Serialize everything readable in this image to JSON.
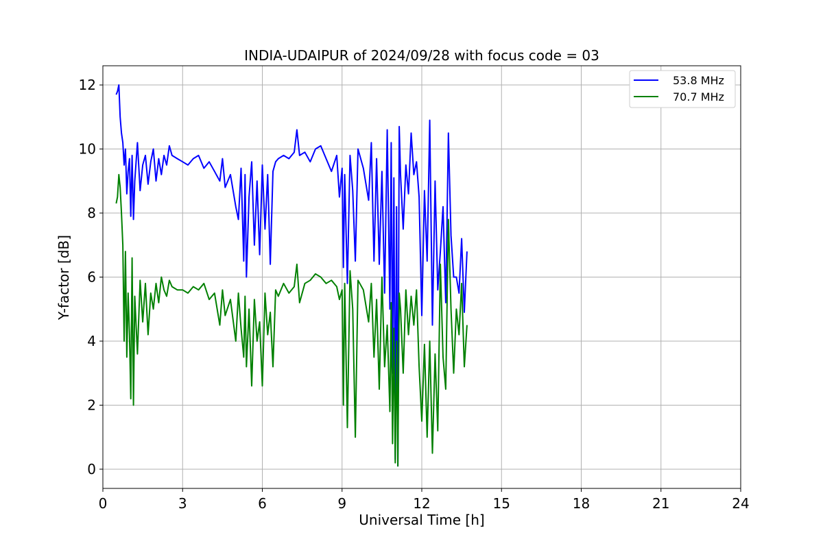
{
  "chart_data": {
    "type": "line",
    "title": "INDIA-UDAIPUR of 2024/09/28 with focus code = 03",
    "xlabel": "Universal Time [h]",
    "ylabel": "Y-factor [dB]",
    "xlim": [
      0,
      24
    ],
    "ylim": [
      -0.6,
      12.6
    ],
    "xticks": [
      "0",
      "3",
      "6",
      "9",
      "12",
      "15",
      "18",
      "21",
      "24"
    ],
    "xtick_values": [
      0,
      3,
      6,
      9,
      12,
      15,
      18,
      21,
      24
    ],
    "yticks": [
      "0",
      "2",
      "4",
      "6",
      "8",
      "10",
      "12"
    ],
    "ytick_values": [
      0,
      2,
      4,
      6,
      8,
      10,
      12
    ],
    "grid": true,
    "legend_position": "top-right",
    "series": [
      {
        "name": "53.8 MHz",
        "color": "#0000ff",
        "x": [
          0.5,
          0.55,
          0.6,
          0.65,
          0.7,
          0.75,
          0.8,
          0.85,
          0.9,
          0.95,
          1.0,
          1.05,
          1.1,
          1.15,
          1.2,
          1.3,
          1.4,
          1.5,
          1.6,
          1.7,
          1.8,
          1.9,
          2.0,
          2.1,
          2.2,
          2.3,
          2.4,
          2.5,
          2.6,
          2.8,
          3.0,
          3.2,
          3.4,
          3.6,
          3.8,
          4.0,
          4.2,
          4.4,
          4.5,
          4.6,
          4.8,
          5.0,
          5.1,
          5.2,
          5.3,
          5.35,
          5.4,
          5.5,
          5.6,
          5.7,
          5.8,
          5.9,
          6.0,
          6.1,
          6.2,
          6.3,
          6.4,
          6.5,
          6.6,
          6.8,
          7.0,
          7.2,
          7.3,
          7.4,
          7.6,
          7.8,
          8.0,
          8.2,
          8.4,
          8.6,
          8.8,
          8.9,
          9.0,
          9.05,
          9.1,
          9.2,
          9.3,
          9.4,
          9.5,
          9.6,
          9.8,
          10.0,
          10.1,
          10.2,
          10.3,
          10.4,
          10.5,
          10.6,
          10.7,
          10.8,
          10.85,
          10.9,
          10.95,
          11.0,
          11.05,
          11.1,
          11.15,
          11.2,
          11.3,
          11.4,
          11.5,
          11.6,
          11.7,
          11.8,
          11.9,
          12.0,
          12.1,
          12.2,
          12.3,
          12.4,
          12.5,
          12.6,
          12.7,
          12.8,
          12.9,
          13.0,
          13.1,
          13.2,
          13.3,
          13.4,
          13.5,
          13.6,
          13.7
        ],
        "y": [
          11.7,
          11.8,
          12.0,
          11.0,
          10.5,
          10.2,
          9.5,
          10.0,
          8.6,
          9.3,
          9.7,
          7.9,
          9.8,
          7.8,
          9.0,
          10.2,
          8.7,
          9.5,
          9.8,
          8.9,
          9.6,
          10.0,
          9.0,
          9.7,
          9.2,
          9.8,
          9.5,
          10.1,
          9.8,
          9.7,
          9.6,
          9.5,
          9.7,
          9.8,
          9.4,
          9.6,
          9.3,
          9.0,
          9.7,
          8.8,
          9.2,
          8.2,
          7.8,
          9.4,
          6.5,
          9.2,
          6.0,
          8.5,
          9.6,
          7.0,
          9.0,
          6.7,
          9.5,
          7.5,
          9.2,
          6.4,
          9.3,
          9.6,
          9.7,
          9.8,
          9.7,
          9.9,
          10.6,
          9.8,
          9.9,
          9.6,
          10.0,
          10.1,
          9.7,
          9.3,
          9.8,
          8.5,
          9.4,
          6.3,
          9.2,
          5.8,
          9.8,
          8.7,
          6.5,
          10.0,
          9.4,
          8.4,
          10.2,
          6.5,
          9.7,
          6.4,
          9.3,
          5.5,
          10.6,
          5.0,
          10.2,
          3.0,
          9.1,
          0.3,
          8.2,
          0.1,
          10.7,
          9.2,
          7.5,
          9.5,
          8.6,
          10.5,
          9.2,
          9.6,
          8.5,
          4.8,
          8.7,
          6.5,
          10.9,
          4.5,
          9.0,
          5.6,
          6.8,
          8.2,
          5.2,
          10.5,
          7.3,
          6.0,
          6.0,
          5.5,
          7.2,
          4.9,
          6.8
        ],
        "legend_label": "53.8 MHz"
      },
      {
        "name": "70.7 MHz",
        "color": "#008000",
        "x": [
          0.5,
          0.55,
          0.6,
          0.65,
          0.7,
          0.75,
          0.8,
          0.85,
          0.9,
          0.95,
          1.0,
          1.05,
          1.1,
          1.15,
          1.2,
          1.3,
          1.4,
          1.5,
          1.6,
          1.7,
          1.8,
          1.9,
          2.0,
          2.1,
          2.2,
          2.3,
          2.4,
          2.5,
          2.6,
          2.8,
          3.0,
          3.2,
          3.4,
          3.6,
          3.8,
          4.0,
          4.2,
          4.4,
          4.5,
          4.6,
          4.8,
          5.0,
          5.1,
          5.2,
          5.3,
          5.35,
          5.4,
          5.5,
          5.6,
          5.7,
          5.8,
          5.9,
          6.0,
          6.1,
          6.2,
          6.3,
          6.4,
          6.5,
          6.6,
          6.8,
          7.0,
          7.2,
          7.3,
          7.4,
          7.6,
          7.8,
          8.0,
          8.2,
          8.4,
          8.6,
          8.8,
          8.9,
          9.0,
          9.05,
          9.1,
          9.2,
          9.3,
          9.4,
          9.5,
          9.6,
          9.8,
          10.0,
          10.1,
          10.2,
          10.3,
          10.4,
          10.5,
          10.6,
          10.7,
          10.8,
          10.85,
          10.9,
          10.95,
          11.0,
          11.05,
          11.1,
          11.15,
          11.2,
          11.3,
          11.4,
          11.5,
          11.6,
          11.7,
          11.8,
          11.9,
          12.0,
          12.1,
          12.2,
          12.3,
          12.4,
          12.5,
          12.6,
          12.7,
          12.8,
          12.9,
          13.0,
          13.1,
          13.2,
          13.3,
          13.4,
          13.5,
          13.6,
          13.7
        ],
        "y": [
          8.3,
          8.5,
          9.2,
          8.8,
          8.0,
          7.0,
          4.0,
          6.8,
          3.5,
          5.5,
          4.2,
          2.2,
          6.6,
          2.0,
          5.4,
          3.6,
          5.9,
          4.6,
          5.8,
          4.2,
          5.5,
          5.0,
          5.8,
          5.2,
          6.0,
          5.6,
          5.4,
          5.9,
          5.7,
          5.6,
          5.6,
          5.5,
          5.7,
          5.6,
          5.8,
          5.3,
          5.5,
          4.5,
          5.6,
          4.8,
          5.3,
          4.0,
          5.5,
          4.4,
          3.5,
          5.4,
          3.2,
          5.0,
          2.6,
          5.3,
          4.0,
          4.6,
          2.6,
          5.5,
          4.2,
          4.9,
          3.2,
          5.6,
          5.4,
          5.8,
          5.5,
          5.7,
          6.4,
          5.2,
          5.8,
          5.9,
          6.1,
          6.0,
          5.8,
          5.9,
          5.7,
          5.3,
          5.6,
          2.0,
          5.8,
          1.3,
          6.2,
          5.0,
          1.0,
          5.9,
          5.6,
          4.6,
          5.8,
          3.5,
          5.3,
          2.5,
          6.0,
          3.2,
          4.5,
          1.8,
          5.2,
          0.8,
          4.4,
          0.2,
          4.0,
          0.1,
          5.5,
          5.0,
          3.0,
          5.6,
          4.2,
          5.4,
          4.5,
          5.6,
          3.2,
          1.5,
          3.9,
          1.0,
          4.0,
          0.5,
          3.6,
          1.2,
          6.4,
          3.5,
          2.5,
          7.8,
          5.0,
          3.0,
          5.0,
          4.2,
          5.8,
          3.2,
          4.5
        ]
      }
    ]
  }
}
